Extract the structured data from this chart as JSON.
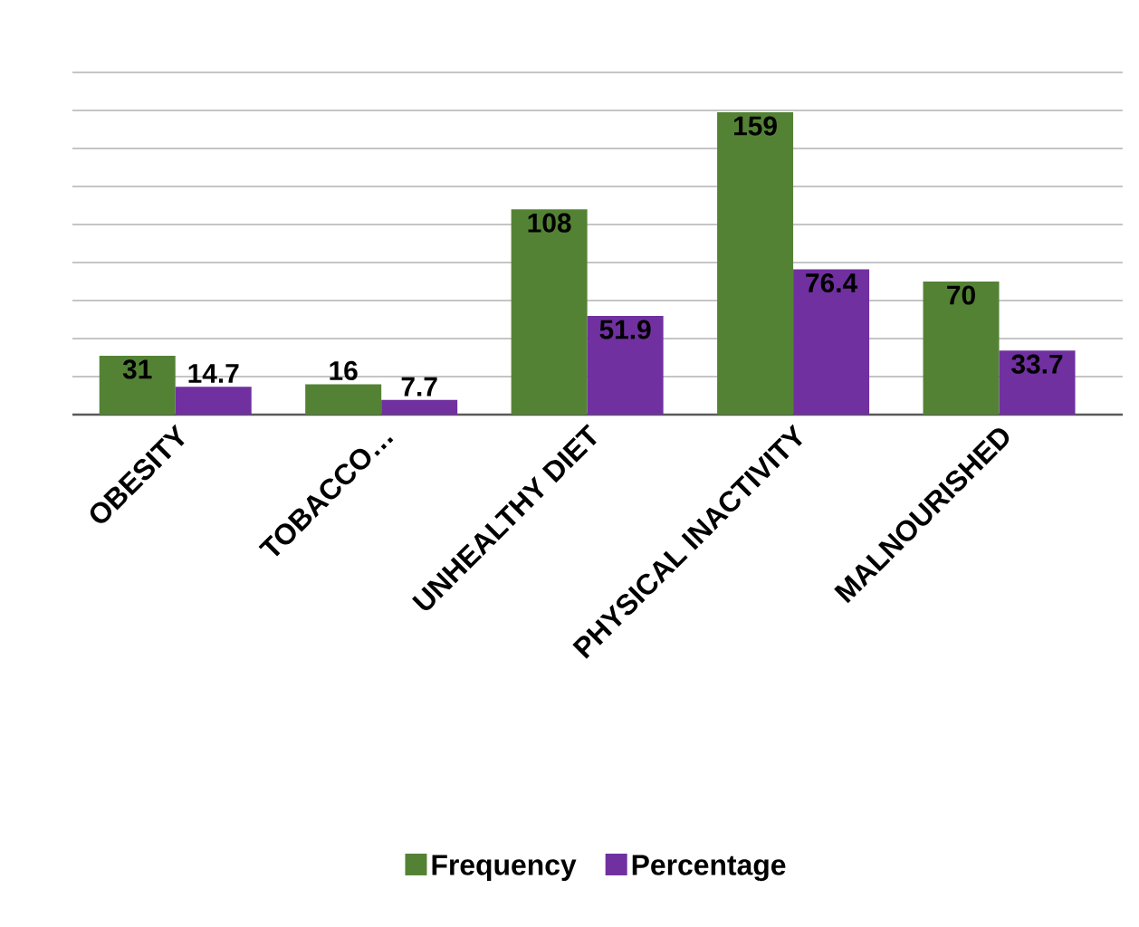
{
  "chart_data": {
    "type": "bar",
    "categories": [
      "OBESITY",
      "TOBACCO…",
      "UNHEALTHY DIET",
      "PHYSICAL INACTIVITY",
      "MALNOURISHED"
    ],
    "series": [
      {
        "name": "Frequency",
        "color": "#548235",
        "values": [
          31,
          16,
          108,
          159,
          70
        ]
      },
      {
        "name": "Percentage",
        "color": "#7030a0",
        "values": [
          14.7,
          7.7,
          51.9,
          76.4,
          33.7
        ]
      }
    ],
    "ylim": [
      0,
      180
    ],
    "yticks": [
      {
        "value": 0,
        "label": null
      },
      {
        "value": 20,
        "label": null
      },
      {
        "value": 40,
        "label": null
      },
      {
        "value": 60,
        "label": null
      },
      {
        "value": 80,
        "label": null
      },
      {
        "value": 100,
        "label": null
      },
      {
        "value": 120,
        "label": null
      },
      {
        "value": 140,
        "label": null
      },
      {
        "value": 160,
        "label": null
      },
      {
        "value": 180,
        "label": null
      }
    ],
    "grid": "y",
    "legend": "bottom",
    "data_labels": true,
    "tick_labels": "x"
  }
}
